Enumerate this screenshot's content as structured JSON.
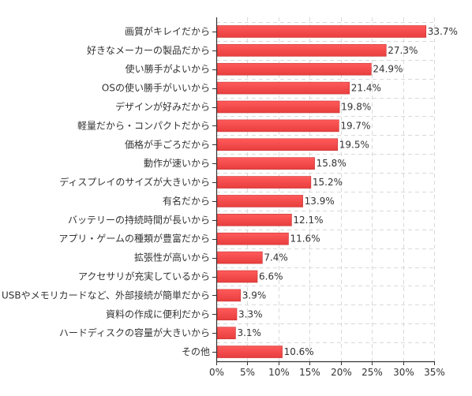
{
  "chart_data": {
    "type": "bar",
    "orientation": "horizontal",
    "categories": [
      "画質がキレイだから",
      "好きなメーカーの製品だから",
      "使い勝手がよいから",
      "OSの使い勝手がいいから",
      "デザインが好みだから",
      "軽量だから・コンパクトだから",
      "価格が手ごろだから",
      "動作が速いから",
      "ディスプレイのサイズが大きいから",
      "有名だから",
      "バッテリーの持続時間が長いから",
      "アプリ・ゲームの種類が豊富だから",
      "拡張性が高いから",
      "アクセサリが充実しているから",
      "USBやメモリカードなど、外部接続が簡単だから",
      "資料の作成に便利だから",
      "ハードディスクの容量が大きいから",
      "その他"
    ],
    "values": [
      33.7,
      27.3,
      24.9,
      21.4,
      19.8,
      19.7,
      19.5,
      15.8,
      15.2,
      13.9,
      12.1,
      11.6,
      7.4,
      6.6,
      3.9,
      3.3,
      3.1,
      10.6
    ],
    "value_labels": [
      "33.7%",
      "27.3%",
      "24.9%",
      "21.4%",
      "19.8%",
      "19.7%",
      "19.5%",
      "15.8%",
      "15.2%",
      "13.9%",
      "12.1%",
      "11.6%",
      "7.4%",
      "6.6%",
      "3.9%",
      "3.3%",
      "3.1%",
      "10.6%"
    ],
    "x_ticks": [
      0,
      5,
      10,
      15,
      20,
      25,
      30,
      35
    ],
    "x_tick_labels": [
      "0%",
      "5%",
      "10%",
      "15%",
      "20%",
      "25%",
      "30%",
      "35%"
    ],
    "xlim": [
      0,
      35
    ],
    "grid": "dashed",
    "legend": "none",
    "title": "",
    "xlabel": "",
    "ylabel": "",
    "colors": {
      "bar_top": "#ff5a5a",
      "bar_bottom": "#e83e3e",
      "bar_edge": "#c93030",
      "grid": "#d9d9d9",
      "axis": "#333333",
      "text": "#333333"
    }
  }
}
